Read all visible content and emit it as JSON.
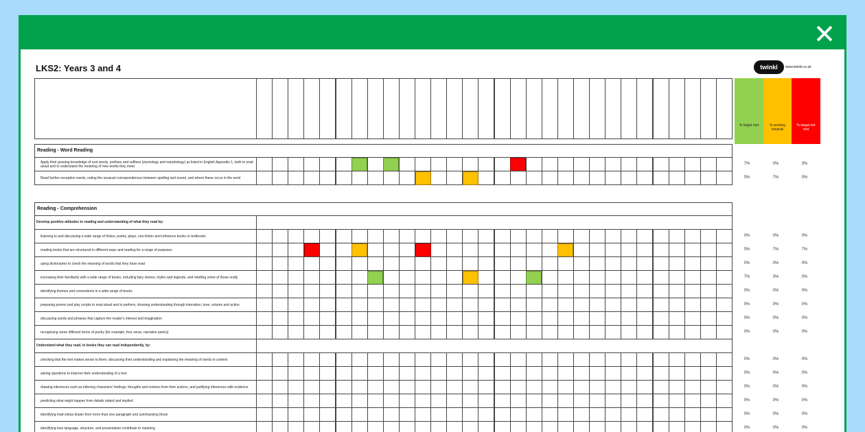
{
  "document": {
    "title": "LKS2: Years 3 and 4",
    "logo": "twinkl",
    "website": "www.twinkl.co.uk",
    "summary_headers": [
      {
        "label": "% target met",
        "color": "#92d050"
      },
      {
        "label": "% working towards",
        "color": "#ffc000"
      },
      {
        "label": "% target not met",
        "color": "#ff0000"
      }
    ],
    "sections": [
      {
        "title": "Reading - Word Reading",
        "groups": [
          {
            "rows": [
              {
                "text": "Apply their growing knowledge of root words, prefixes and suffixes (etymology and morphology) as listed in English Appendix 1, both to read aloud and to understand the meaning of new words they meet",
                "ratings": [
                  {
                    "column": 6,
                    "color": "#92d050"
                  },
                  {
                    "column": 8,
                    "color": "#92d050"
                  },
                  {
                    "column": 16,
                    "color": "#ff0000"
                  }
                ],
                "summary": [
                  "7%",
                  "0%",
                  "3%"
                ]
              },
              {
                "text": "Read further exception words, noting the unusual correspondences between spelling and sound, and where these occur in the word",
                "ratings": [
                  {
                    "column": 10,
                    "color": "#ffc000"
                  },
                  {
                    "column": 13,
                    "color": "#ffc000"
                  }
                ],
                "summary": [
                  "0%",
                  "7%",
                  "0%"
                ]
              }
            ]
          }
        ]
      },
      {
        "title": "Reading - Comprehension",
        "groups": [
          {
            "heading": "Develop positive attitudes to reading and understanding of what they read by:",
            "rows": [
              {
                "text": "listening to and discussing a wide range of fiction, poetry, plays, non-fiction and reference books or textbooks",
                "ratings": [],
                "summary": [
                  "0%",
                  "0%",
                  "0%"
                ]
              },
              {
                "text": "reading books that are structured in different ways and reading for a range of purposes",
                "ratings": [
                  {
                    "column": 3,
                    "color": "#ff0000"
                  },
                  {
                    "column": 6,
                    "color": "#ffc000"
                  },
                  {
                    "column": 10,
                    "color": "#ff0000"
                  },
                  {
                    "column": 19,
                    "color": "#ffc000"
                  }
                ],
                "summary": [
                  "0%",
                  "7%",
                  "7%"
                ]
              },
              {
                "text": "using dictionaries to check the meaning of words that they have read",
                "ratings": [],
                "summary": [
                  "0%",
                  "0%",
                  "0%"
                ]
              },
              {
                "text": "increasing their familiarity with a wide range of books, including fairy stories, myths and legends, and retelling some of these orally",
                "ratings": [
                  {
                    "column": 7,
                    "color": "#92d050"
                  },
                  {
                    "column": 13,
                    "color": "#ffc000"
                  },
                  {
                    "column": 17,
                    "color": "#92d050"
                  }
                ],
                "summary": [
                  "7%",
                  "3%",
                  "0%"
                ]
              },
              {
                "text": "identifying themes and conventions in a wide range of books",
                "ratings": [],
                "summary": [
                  "0%",
                  "0%",
                  "0%"
                ]
              },
              {
                "text": "preparing poems and play scripts to read aloud and to perform, showing understanding through intonation, tone, volume and action",
                "ratings": [],
                "summary": [
                  "0%",
                  "0%",
                  "0%"
                ]
              },
              {
                "text": "discussing words and phrases that capture the reader's interest and imagination",
                "ratings": [],
                "summary": [
                  "0%",
                  "0%",
                  "0%"
                ]
              },
              {
                "text": "recognising some different forms of poetry [for example, free verse, narrative poetry]",
                "ratings": [],
                "summary": [
                  "0%",
                  "0%",
                  "0%"
                ]
              }
            ]
          },
          {
            "heading": "Understand what they read, in books they can read independently, by:",
            "rows": [
              {
                "text": "checking that the text makes sense to them, discussing their understanding and explaining the meaning of words in context",
                "ratings": [],
                "summary": [
                  "0%",
                  "0%",
                  "0%"
                ]
              },
              {
                "text": "asking questions to improve their understanding of a text",
                "ratings": [],
                "summary": [
                  "0%",
                  "0%",
                  "0%"
                ]
              },
              {
                "text": "drawing inferences such as inferring characters' feelings, thoughts and motives from their actions, and justifying inferences with evidence",
                "ratings": [],
                "summary": [
                  "0%",
                  "0%",
                  "0%"
                ]
              },
              {
                "text": "predicting what might happen from details stated and implied",
                "ratings": [],
                "summary": [
                  "0%",
                  "0%",
                  "0%"
                ]
              },
              {
                "text": "identifying main ideas drawn from more than one paragraph and summarising these",
                "ratings": [],
                "summary": [
                  "0%",
                  "0%",
                  "0%"
                ]
              },
              {
                "text": "identifying how language, structure, and presentation contribute to meaning",
                "ratings": [],
                "summary": [
                  "0%",
                  "0%",
                  "0%"
                ]
              }
            ]
          }
        ]
      }
    ]
  }
}
